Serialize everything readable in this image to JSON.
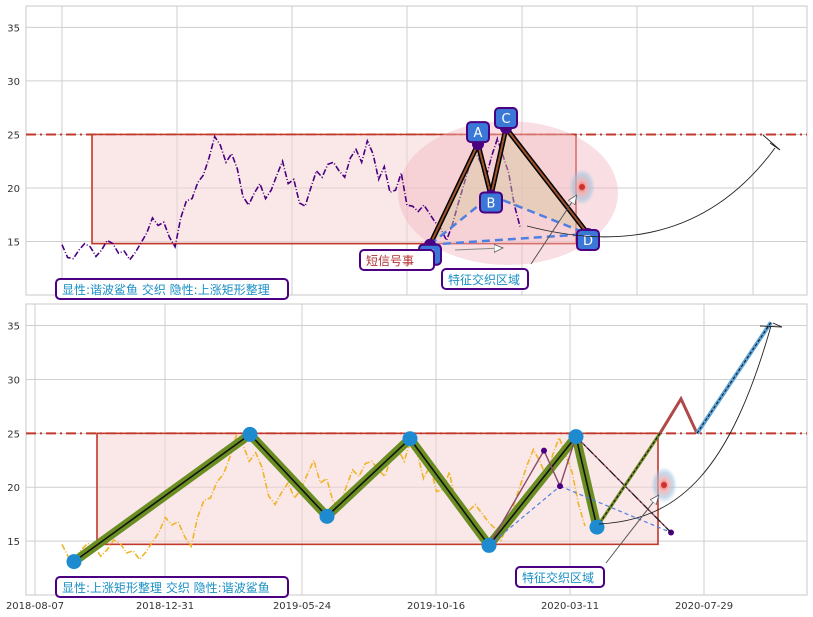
{
  "colors": {
    "accent_red": "#c0392b",
    "purple": "#4b0082",
    "gold": "#f0b429",
    "node_blue": "#3a78d8",
    "green": "#6b8e23",
    "blue_dash": "#4f7fe0",
    "cyan_text": "#1a8fc4",
    "ann_red": "#b03030"
  },
  "chart_data": [
    {
      "type": "line",
      "title": "",
      "ylim": [
        10,
        37
      ],
      "yticks": [
        15,
        20,
        25,
        30,
        35
      ],
      "resistance_level": 25,
      "rectangle": {
        "x0": 0.09,
        "x1": 0.7,
        "y0": 14.8,
        "y1": 25
      },
      "series": [
        {
          "values": [
            14.7,
            13.5,
            13.4,
            14.2,
            14.8,
            14.5,
            13.6,
            14.2,
            15.1,
            14.8,
            13.9,
            14.1,
            13.3,
            14.0,
            14.9,
            15.8,
            17.2,
            16.5,
            16.8,
            15.4,
            14.5,
            17.2,
            18.8,
            19.0,
            20.5,
            21.2,
            22.8,
            24.8,
            24.0,
            22.4,
            23.2,
            21.8,
            19.2,
            18.4,
            19.5,
            20.4,
            19.0,
            19.8,
            21.2,
            22.5,
            20.4,
            20.8,
            18.6,
            18.3,
            20.0,
            21.6,
            21.0,
            22.2,
            22.4,
            21.6,
            21.0,
            22.8,
            23.6,
            22.4,
            24.4,
            23.2,
            20.8,
            22.0,
            19.6,
            19.8,
            21.4,
            18.4,
            18.3,
            17.8,
            18.4,
            17.6,
            16.8,
            16.2,
            15.1,
            16.5,
            18.4,
            20.2,
            22.0,
            23.5,
            22.4,
            21.0,
            23.0,
            24.6,
            23.0,
            21.4,
            18.4,
            16.4
          ]
        }
      ],
      "pattern_points": [
        {
          "label": "X",
          "value": 14.7
        },
        {
          "label": "A",
          "value": 24.1
        },
        {
          "label": "B",
          "value": 19.3
        },
        {
          "label": "C",
          "value": 25.6
        },
        {
          "label": "D",
          "value": 15.7
        }
      ],
      "annotations": {
        "explicit_implicit": "显性:谐波鲨鱼 交织 隐性:上涨矩形整理",
        "short_signal": "短信号事",
        "feature_zone": "特征交织区域"
      }
    },
    {
      "type": "line",
      "title": "",
      "ylim": [
        10,
        37
      ],
      "yticks": [
        15,
        20,
        25,
        30,
        35
      ],
      "xticks": [
        "2018-08-07",
        "2018-12-31",
        "2019-05-24",
        "2019-10-16",
        "2020-03-11",
        "2020-07-29"
      ],
      "resistance_level": 25,
      "rectangle": {
        "x0": 0.09,
        "x1": 0.81,
        "y0": 14.7,
        "y1": 25
      },
      "series": [
        {
          "values": [
            14.7,
            13.5,
            13.4,
            14.2,
            14.8,
            14.5,
            13.6,
            14.2,
            15.1,
            14.8,
            13.9,
            14.1,
            13.3,
            14.0,
            14.9,
            15.8,
            17.2,
            16.5,
            16.8,
            15.4,
            14.5,
            17.2,
            18.8,
            19.0,
            20.5,
            21.2,
            22.8,
            24.8,
            24.0,
            22.4,
            23.2,
            21.8,
            19.2,
            18.4,
            19.5,
            20.4,
            19.0,
            19.8,
            21.2,
            22.5,
            20.4,
            20.8,
            18.6,
            18.3,
            20.0,
            21.6,
            21.0,
            22.2,
            22.4,
            21.6,
            21.0,
            22.8,
            23.6,
            22.4,
            24.4,
            23.2,
            20.8,
            22.0,
            19.6,
            19.8,
            21.4,
            18.4,
            18.3,
            17.8,
            18.4,
            17.6,
            16.8,
            16.2,
            15.1,
            16.5,
            18.4,
            20.2,
            22.0,
            23.5,
            22.4,
            21.0,
            23.0,
            24.6,
            23.0,
            21.4,
            18.4,
            16.4
          ]
        }
      ],
      "zigzag": [
        13.1,
        24.9,
        17.3,
        24.5,
        14.6,
        24.7,
        16.3
      ],
      "target_price": 35.3,
      "annotations": {
        "explicit_implicit": "显性:上涨矩形整理 交织 隐性:谐波鲨鱼",
        "feature_zone": "特征交织区域"
      }
    }
  ]
}
